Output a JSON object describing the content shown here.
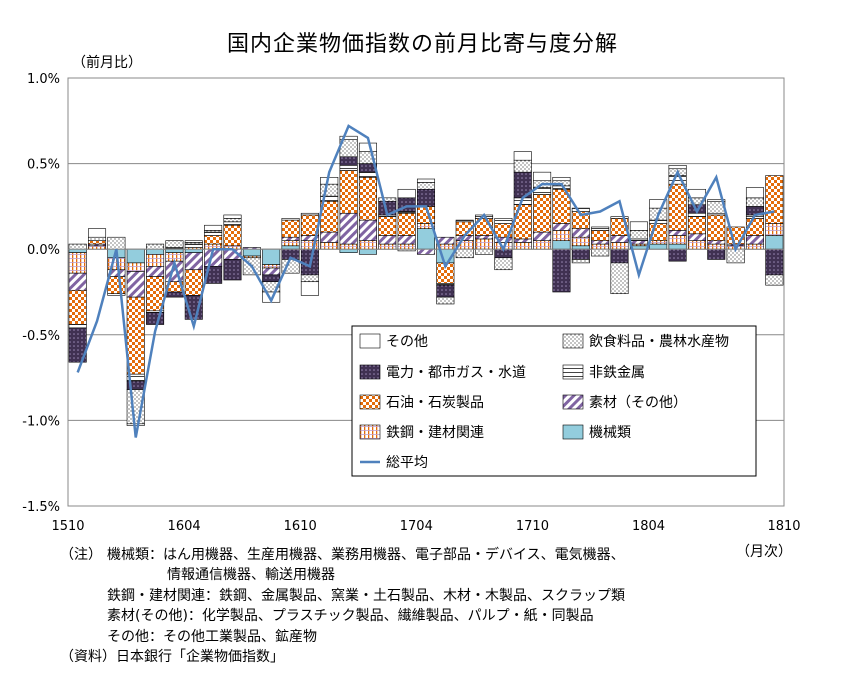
{
  "title": "国内企業物価指数の前月比寄与度分解",
  "y_unit_label": "（前月比）",
  "x_unit_label": "（月次）",
  "notes": [
    {
      "head": "（注）",
      "text": "機械類：はん用機器、生産用機器、業務用機器、電子部品・デバイス、電気機器、"
    },
    {
      "head": "",
      "text": "情報通信機器、輸送用機器"
    },
    {
      "head": "",
      "text": "鉄鋼・建材関連：鉄鋼、金属製品、窯業・土石製品、木材・木製品、スクラップ類"
    },
    {
      "head": "",
      "text": "素材(その他)：化学製品、プラスチック製品、繊維製品、パルプ・紙・同製品"
    },
    {
      "head": "",
      "text": "その他：その他工業製品、鉱産物"
    },
    {
      "head": "",
      "text": "（資料）日本銀行「企業物価指数」"
    }
  ],
  "chart_data": {
    "type": "bar",
    "stacked": true,
    "title": "国内企業物価指数の前月比寄与度分解",
    "ylabel": "（前月比）",
    "xlabel": "（月次）",
    "ylim": [
      -1.5,
      1.0
    ],
    "yticks": [
      "1.0%",
      "0.5%",
      "0.0%",
      "-0.5%",
      "-1.0%",
      "-1.5%"
    ],
    "ytick_values": [
      1.0,
      0.5,
      0.0,
      -0.5,
      -1.0,
      -1.5
    ],
    "xtick_labels": [
      "1510",
      "1604",
      "1610",
      "1704",
      "1710",
      "1804",
      "1810"
    ],
    "xtick_indices": [
      0,
      6,
      12,
      18,
      24,
      30,
      36
    ],
    "grid": true,
    "legend_position": "bottom-right (inside plot)",
    "categories": [
      "1510",
      "1511",
      "1512",
      "1601",
      "1602",
      "1603",
      "1604",
      "1605",
      "1606",
      "1607",
      "1608",
      "1609",
      "1610",
      "1611",
      "1612",
      "1701",
      "1702",
      "1703",
      "1704",
      "1705",
      "1706",
      "1707",
      "1708",
      "1709",
      "1710",
      "1711",
      "1712",
      "1801",
      "1802",
      "1803",
      "1804",
      "1805",
      "1806",
      "1807",
      "1808",
      "1809",
      "1810"
    ],
    "series": [
      {
        "name": "機械類",
        "color": "#93cddd",
        "pattern": "solid",
        "values": [
          -0.02,
          0.0,
          -0.05,
          -0.08,
          -0.03,
          -0.02,
          -0.02,
          0.0,
          0.0,
          -0.04,
          -0.09,
          0.02,
          0.0,
          0.0,
          -0.02,
          -0.03,
          0.0,
          0.0,
          0.12,
          -0.08,
          0.0,
          0.0,
          0.0,
          0.0,
          0.0,
          0.05,
          0.02,
          0.0,
          0.0,
          0.02,
          0.03,
          0.03,
          0.0,
          0.0,
          0.0,
          0.0,
          0.08
        ]
      },
      {
        "name": "鉄鋼・建材関連",
        "color": "#e46c0a",
        "pattern": "vertical-lines",
        "values": [
          -0.12,
          0.02,
          -0.07,
          -0.05,
          -0.07,
          -0.05,
          0.01,
          0.03,
          0.02,
          -0.01,
          -0.02,
          0.03,
          0.05,
          0.04,
          0.03,
          0.05,
          0.03,
          0.03,
          0.03,
          0.03,
          0.05,
          0.06,
          0.04,
          0.04,
          0.05,
          0.06,
          0.05,
          0.03,
          0.04,
          0.01,
          0.02,
          0.05,
          0.05,
          0.03,
          0.02,
          0.03,
          0.07
        ]
      },
      {
        "name": "素材（その他）",
        "color": "#8064a2",
        "pattern": "diagonal",
        "values": [
          -0.1,
          0.01,
          -0.04,
          -0.15,
          -0.06,
          -0.12,
          -0.1,
          -0.1,
          -0.06,
          0.01,
          -0.04,
          0.02,
          0.03,
          0.06,
          0.18,
          0.12,
          0.05,
          0.05,
          -0.03,
          0.04,
          0.03,
          0.02,
          0.03,
          0.02,
          0.05,
          0.04,
          0.05,
          0.02,
          0.04,
          0.02,
          0.0,
          0.03,
          0.04,
          0.02,
          0.01,
          0.05,
          0.0
        ]
      },
      {
        "name": "石油・石炭製品",
        "color": "#e46c0a",
        "pattern": "checker",
        "values": [
          -0.2,
          0.02,
          -0.1,
          -0.45,
          -0.2,
          -0.06,
          -0.15,
          0.05,
          0.12,
          0.0,
          0.0,
          0.1,
          0.12,
          0.18,
          0.25,
          0.25,
          0.11,
          0.13,
          0.1,
          -0.12,
          0.08,
          0.1,
          0.08,
          0.2,
          0.22,
          0.2,
          0.1,
          0.06,
          0.1,
          0.0,
          0.1,
          0.27,
          0.1,
          0.15,
          0.1,
          0.1,
          0.28
        ]
      },
      {
        "name": "非鉄金属",
        "color": "#ffffff",
        "pattern": "horizontal-lines",
        "values": [
          -0.02,
          0.0,
          -0.01,
          -0.04,
          -0.01,
          0.01,
          0.02,
          0.02,
          0.02,
          0.0,
          0.0,
          0.01,
          0.01,
          0.03,
          0.03,
          0.03,
          0.01,
          0.01,
          0.0,
          -0.01,
          0.01,
          0.02,
          0.03,
          0.04,
          0.04,
          0.02,
          0.02,
          0.02,
          0.01,
          0.01,
          0.02,
          0.05,
          0.02,
          0.01,
          0.0,
          0.02,
          0.0
        ]
      },
      {
        "name": "電力・都市ガス・水道",
        "color": "#403152",
        "pattern": "dots",
        "values": [
          -0.2,
          0.0,
          0.0,
          -0.05,
          -0.07,
          -0.03,
          -0.14,
          -0.1,
          -0.12,
          0.0,
          -0.04,
          -0.06,
          -0.15,
          0.0,
          0.05,
          0.05,
          0.08,
          0.08,
          0.1,
          -0.07,
          0.0,
          0.0,
          -0.05,
          0.15,
          0.0,
          -0.25,
          -0.06,
          0.0,
          -0.08,
          0.0,
          0.0,
          -0.07,
          0.05,
          -0.06,
          0.0,
          0.05,
          -0.15
        ]
      },
      {
        "name": "飲食料品・農林水産物",
        "color": "#ffffff",
        "pattern": "stipple",
        "values": [
          0.03,
          0.02,
          0.07,
          -0.2,
          0.03,
          0.04,
          0.01,
          0.01,
          0.02,
          -0.1,
          -0.06,
          -0.08,
          -0.04,
          0.07,
          0.1,
          0.07,
          0.02,
          -0.01,
          0.04,
          -0.04,
          -0.05,
          -0.03,
          -0.07,
          0.07,
          0.04,
          0.03,
          -0.02,
          -0.04,
          -0.18,
          0.05,
          0.07,
          0.04,
          0.04,
          0.07,
          -0.08,
          0.05,
          -0.06
        ]
      },
      {
        "name": "その他",
        "color": "#ffffff",
        "pattern": "plain",
        "values": [
          0.0,
          0.05,
          0.0,
          -0.01,
          0.0,
          0.0,
          0.01,
          0.03,
          0.02,
          0.0,
          -0.06,
          0.0,
          -0.08,
          0.04,
          0.02,
          0.05,
          0.0,
          0.05,
          0.02,
          0.0,
          0.0,
          0.0,
          0.0,
          0.05,
          0.05,
          0.02,
          0.0,
          0.0,
          0.0,
          0.05,
          0.05,
          0.02,
          0.05,
          0.01,
          0.0,
          0.06,
          0.0
        ]
      },
      {
        "name": "総平均",
        "color": "#4f81bd",
        "type": "line",
        "values": [
          -0.72,
          -0.42,
          0.0,
          -1.1,
          -0.48,
          -0.08,
          -0.45,
          0.0,
          0.0,
          -0.1,
          -0.3,
          -0.05,
          -0.1,
          0.45,
          0.72,
          0.65,
          0.2,
          0.25,
          0.25,
          -0.1,
          0.08,
          0.2,
          0.0,
          0.3,
          0.38,
          0.38,
          0.2,
          0.22,
          0.28,
          -0.15,
          0.2,
          0.45,
          0.22,
          0.42,
          0.0,
          0.2,
          0.22
        ]
      }
    ],
    "legend": [
      "その他",
      "飲食料品・農林水産物",
      "電力・都市ガス・水道",
      "非鉄金属",
      "石油・石炭製品",
      "素材（その他）",
      "鉄鋼・建材関連",
      "機械類",
      "総平均"
    ]
  }
}
